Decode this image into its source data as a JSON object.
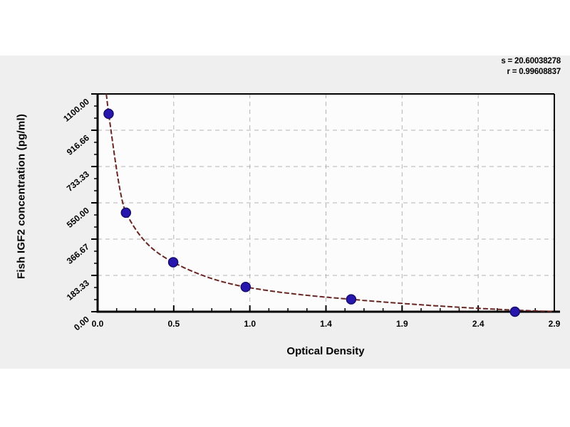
{
  "figure": {
    "background_color": "#ffffff",
    "panel_color": "#efefef",
    "plot_background_color": "#fcfcfc"
  },
  "chart_data": {
    "type": "scatter",
    "title": "",
    "xlabel": "Optical Density",
    "ylabel": "Fish IGF2 concentration (pg/ml)",
    "xlim": [
      0,
      2.9
    ],
    "ylim": [
      0,
      1100
    ],
    "x_tick_labels": [
      "0.0",
      "0.5",
      "1.0",
      "1.4",
      "1.9",
      "2.4",
      "2.9"
    ],
    "y_tick_labels": [
      "0.00",
      "183.33",
      "366.67",
      "550.00",
      "733.33",
      "916.66",
      "1100.00"
    ],
    "grid": "dashed",
    "legend": "none",
    "annotations": {
      "s_line": "s = 20.60038278",
      "r_line": "r = 0.99608837"
    },
    "points": [
      {
        "od": 0.07,
        "concentration": 1000
      },
      {
        "od": 0.18,
        "concentration": 500
      },
      {
        "od": 0.48,
        "concentration": 250
      },
      {
        "od": 0.94,
        "concentration": 125
      },
      {
        "od": 1.61,
        "concentration": 62.5
      },
      {
        "od": 2.65,
        "concentration": 0
      }
    ],
    "curve_points": [
      [
        0.055,
        1100
      ],
      [
        0.07,
        1000
      ],
      [
        0.18,
        500
      ],
      [
        0.48,
        250
      ],
      [
        0.94,
        125
      ],
      [
        1.61,
        62.5
      ],
      [
        2.65,
        8
      ],
      [
        2.9,
        1
      ]
    ],
    "curve_color": "#682522",
    "point_color": "#2817ad",
    "grid_color": "#b3b3b3",
    "axis_color": "#000000"
  }
}
